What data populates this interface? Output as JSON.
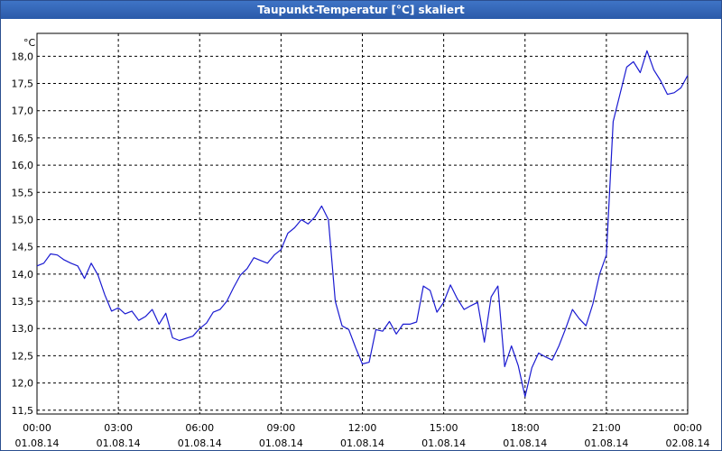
{
  "window": {
    "title": "Taupunkt-Temperatur [°C] skaliert"
  },
  "colors": {
    "titlebar": "#2f63b6",
    "line": "#1a1ad1",
    "grid": "#000000",
    "background": "#ffffff"
  },
  "chart_data": {
    "type": "line",
    "title": "Taupunkt-Temperatur [°C] skaliert",
    "ylabel": "°C",
    "ylim": [
      11.43,
      18.42
    ],
    "xlim": [
      "01.08.14 00:00",
      "02.08.14 00:00"
    ],
    "grid": true,
    "y_ticks": [
      11.5,
      12.0,
      12.5,
      13.0,
      13.5,
      14.0,
      14.5,
      15.0,
      15.5,
      16.0,
      16.5,
      17.0,
      17.5,
      18.0
    ],
    "y_tick_labels": [
      "11,5",
      "12,0",
      "12,5",
      "13,0",
      "13,5",
      "14,0",
      "14,5",
      "15,0",
      "15,5",
      "16,0",
      "16,5",
      "17,0",
      "17,5",
      "18,0"
    ],
    "x_ticks": [
      {
        "time": "00:00",
        "date": "01.08.14"
      },
      {
        "time": "03:00",
        "date": "01.08.14"
      },
      {
        "time": "06:00",
        "date": "01.08.14"
      },
      {
        "time": "09:00",
        "date": "01.08.14"
      },
      {
        "time": "12:00",
        "date": "01.08.14"
      },
      {
        "time": "15:00",
        "date": "01.08.14"
      },
      {
        "time": "18:00",
        "date": "01.08.14"
      },
      {
        "time": "21:00",
        "date": "01.08.14"
      },
      {
        "time": "00:00",
        "date": "02.08.14"
      }
    ],
    "series": [
      {
        "points": [
          [
            "01.08.14 00:00",
            14.15
          ],
          [
            "01.08.14 00:15",
            14.2
          ],
          [
            "01.08.14 00:30",
            14.37
          ],
          [
            "01.08.14 00:45",
            14.35
          ],
          [
            "01.08.14 01:00",
            14.26
          ],
          [
            "01.08.14 01:15",
            14.2
          ],
          [
            "01.08.14 01:30",
            14.15
          ],
          [
            "01.08.14 01:45",
            13.92
          ],
          [
            "01.08.14 02:00",
            14.2
          ],
          [
            "01.08.14 02:15",
            13.98
          ],
          [
            "01.08.14 02:30",
            13.62
          ],
          [
            "01.08.14 02:45",
            13.32
          ],
          [
            "01.08.14 03:00",
            13.38
          ],
          [
            "01.08.14 03:15",
            13.27
          ],
          [
            "01.08.14 03:30",
            13.32
          ],
          [
            "01.08.14 03:45",
            13.15
          ],
          [
            "01.08.14 04:00",
            13.22
          ],
          [
            "01.08.14 04:15",
            13.35
          ],
          [
            "01.08.14 04:30",
            13.08
          ],
          [
            "01.08.14 04:45",
            13.28
          ],
          [
            "01.08.14 05:00",
            12.83
          ],
          [
            "01.08.14 05:15",
            12.78
          ],
          [
            "01.08.14 05:30",
            12.82
          ],
          [
            "01.08.14 05:45",
            12.86
          ],
          [
            "01.08.14 06:00",
            13.0
          ],
          [
            "01.08.14 06:15",
            13.1
          ],
          [
            "01.08.14 06:30",
            13.3
          ],
          [
            "01.08.14 06:45",
            13.35
          ],
          [
            "01.08.14 07:00",
            13.5
          ],
          [
            "01.08.14 07:15",
            13.75
          ],
          [
            "01.08.14 07:30",
            13.98
          ],
          [
            "01.08.14 07:45",
            14.1
          ],
          [
            "01.08.14 08:00",
            14.3
          ],
          [
            "01.08.14 08:15",
            14.25
          ],
          [
            "01.08.14 08:30",
            14.2
          ],
          [
            "01.08.14 08:45",
            14.35
          ],
          [
            "01.08.14 09:00",
            14.45
          ],
          [
            "01.08.14 09:15",
            14.75
          ],
          [
            "01.08.14 09:30",
            14.85
          ],
          [
            "01.08.14 09:45",
            15.0
          ],
          [
            "01.08.14 10:00",
            14.92
          ],
          [
            "01.08.14 10:15",
            15.05
          ],
          [
            "01.08.14 10:30",
            15.25
          ],
          [
            "01.08.14 10:45",
            15.0
          ],
          [
            "01.08.14 11:00",
            13.5
          ],
          [
            "01.08.14 11:15",
            13.05
          ],
          [
            "01.08.14 11:30",
            12.98
          ],
          [
            "01.08.14 11:45",
            12.65
          ],
          [
            "01.08.14 12:00",
            12.35
          ],
          [
            "01.08.14 12:15",
            12.38
          ],
          [
            "01.08.14 12:30",
            12.98
          ],
          [
            "01.08.14 12:45",
            12.95
          ],
          [
            "01.08.14 13:00",
            13.13
          ],
          [
            "01.08.14 13:15",
            12.9
          ],
          [
            "01.08.14 13:30",
            13.08
          ],
          [
            "01.08.14 13:45",
            13.08
          ],
          [
            "01.08.14 14:00",
            13.12
          ],
          [
            "01.08.14 14:15",
            13.78
          ],
          [
            "01.08.14 14:30",
            13.7
          ],
          [
            "01.08.14 14:45",
            13.3
          ],
          [
            "01.08.14 15:00",
            13.48
          ],
          [
            "01.08.14 15:15",
            13.8
          ],
          [
            "01.08.14 15:30",
            13.55
          ],
          [
            "01.08.14 15:45",
            13.35
          ],
          [
            "01.08.14 16:00",
            13.42
          ],
          [
            "01.08.14 16:15",
            13.48
          ],
          [
            "01.08.14 16:30",
            12.75
          ],
          [
            "01.08.14 16:45",
            13.58
          ],
          [
            "01.08.14 17:00",
            13.78
          ],
          [
            "01.08.14 17:15",
            12.3
          ],
          [
            "01.08.14 17:30",
            12.68
          ],
          [
            "01.08.14 17:45",
            12.32
          ],
          [
            "01.08.14 18:00",
            11.75
          ],
          [
            "01.08.14 18:15",
            12.28
          ],
          [
            "01.08.14 18:30",
            12.55
          ],
          [
            "01.08.14 18:45",
            12.48
          ],
          [
            "01.08.14 19:00",
            12.42
          ],
          [
            "01.08.14 19:15",
            12.68
          ],
          [
            "01.08.14 19:30",
            13.0
          ],
          [
            "01.08.14 19:45",
            13.35
          ],
          [
            "01.08.14 20:00",
            13.18
          ],
          [
            "01.08.14 20:15",
            13.05
          ],
          [
            "01.08.14 20:30",
            13.45
          ],
          [
            "01.08.14 20:45",
            14.0
          ],
          [
            "01.08.14 21:00",
            14.35
          ],
          [
            "01.08.14 21:15",
            16.8
          ],
          [
            "01.08.14 21:30",
            17.3
          ],
          [
            "01.08.14 21:45",
            17.8
          ],
          [
            "01.08.14 22:00",
            17.9
          ],
          [
            "01.08.14 22:15",
            17.7
          ],
          [
            "01.08.14 22:30",
            18.1
          ],
          [
            "01.08.14 22:45",
            17.75
          ],
          [
            "01.08.14 23:00",
            17.55
          ],
          [
            "01.08.14 23:15",
            17.3
          ],
          [
            "01.08.14 23:30",
            17.33
          ],
          [
            "01.08.14 23:45",
            17.42
          ],
          [
            "02.08.14 00:00",
            17.65
          ]
        ]
      }
    ]
  }
}
